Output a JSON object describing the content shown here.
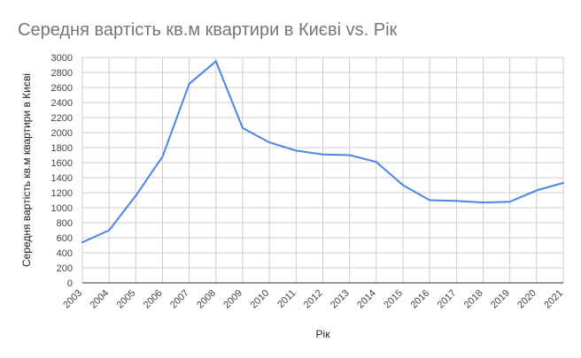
{
  "chart_data": {
    "type": "line",
    "title": "Середня вартість кв.м квартири в Києві vs. Рік",
    "xlabel": "Рік",
    "ylabel": "Середня вартість кв.м квартири в Києві",
    "categories": [
      "2003",
      "2004",
      "2005",
      "2006",
      "2007",
      "2008",
      "2009",
      "2010",
      "2011",
      "2012",
      "2013",
      "2014",
      "2015",
      "2016",
      "2017",
      "2018",
      "2019",
      "2020",
      "2021"
    ],
    "series": [
      {
        "values": [
          540,
          700,
          1160,
          1680,
          2650,
          2950,
          2060,
          1870,
          1760,
          1710,
          1700,
          1610,
          1300,
          1100,
          1090,
          1070,
          1080,
          1230,
          1330
        ]
      }
    ],
    "ylim": [
      0,
      3000
    ],
    "y_ticks": [
      0,
      200,
      400,
      600,
      800,
      1000,
      1200,
      1400,
      1600,
      1800,
      2000,
      2200,
      2400,
      2600,
      2800,
      3000
    ],
    "grid": true,
    "legend": "none",
    "colors": {
      "line": "#4a86e8",
      "grid": "#cccccc",
      "title": "#757575"
    }
  }
}
